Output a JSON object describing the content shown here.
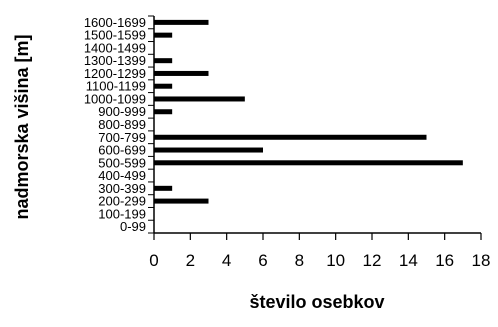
{
  "chart_data": {
    "type": "bar",
    "orientation": "horizontal",
    "categories": [
      "0-99",
      "100-199",
      "200-299",
      "300-399",
      "400-499",
      "500-599",
      "600-699",
      "700-799",
      "800-899",
      "900-999",
      "1000-1099",
      "1100-1199",
      "1200-1299",
      "1300-1399",
      "1400-1499",
      "1500-1599",
      "1600-1699"
    ],
    "values": [
      0,
      0,
      3,
      1,
      0,
      17,
      6,
      15,
      0,
      1,
      5,
      1,
      3,
      1,
      0,
      1,
      3
    ],
    "xlabel": "število osebkov",
    "ylabel": "nadmorska višina [m]",
    "xlim": [
      0,
      18
    ],
    "x_ticks": [
      "0",
      "2",
      "4",
      "6",
      "8",
      "10",
      "12",
      "14",
      "16",
      "18"
    ],
    "grid": false,
    "bar_color": "#000000"
  }
}
